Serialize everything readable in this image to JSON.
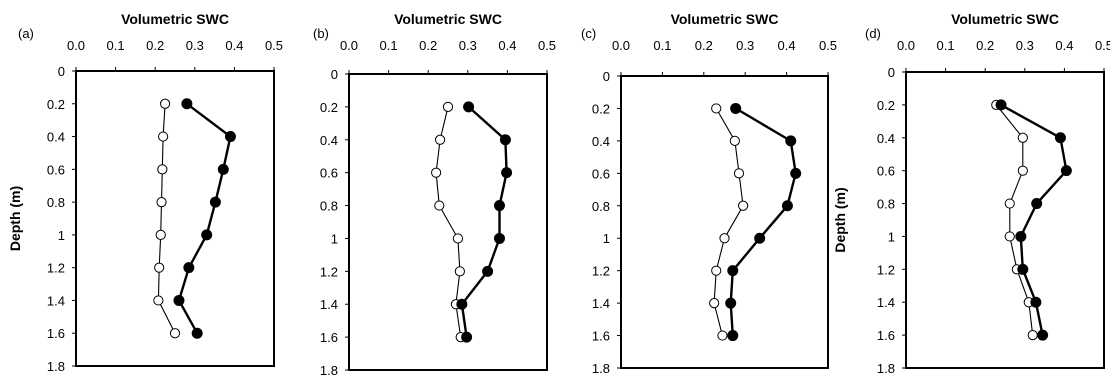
{
  "chart_data": [
    {
      "type": "line",
      "panel_label": "(a)",
      "xlabel": "Volumetric SWC",
      "ylabel": "Depth (m)",
      "xlim": [
        0,
        0.5
      ],
      "ylim": [
        0,
        1.8
      ],
      "x_ticks": [
        "0.0",
        "0.1",
        "0.2",
        "0.3",
        "0.4",
        "0.5"
      ],
      "y_ticks": [
        "0",
        "0.2",
        "0.4",
        "0.6",
        "0.8",
        "1",
        "1.2",
        "1.4",
        "1.6",
        "1.8"
      ],
      "series": [
        {
          "marker": "open-circle",
          "points": [
            [
              0.225,
              0.2
            ],
            [
              0.22,
              0.4
            ],
            [
              0.218,
              0.6
            ],
            [
              0.216,
              0.8
            ],
            [
              0.214,
              1.0
            ],
            [
              0.21,
              1.2
            ],
            [
              0.208,
              1.4
            ],
            [
              0.25,
              1.6
            ]
          ]
        },
        {
          "marker": "filled-circle",
          "points": [
            [
              0.28,
              0.2
            ],
            [
              0.39,
              0.4
            ],
            [
              0.372,
              0.6
            ],
            [
              0.352,
              0.8
            ],
            [
              0.33,
              1.0
            ],
            [
              0.285,
              1.2
            ],
            [
              0.26,
              1.4
            ],
            [
              0.306,
              1.6
            ]
          ]
        }
      ]
    },
    {
      "type": "line",
      "panel_label": "(b)",
      "xlabel": "Volumetric SWC",
      "ylabel": "",
      "xlim": [
        0,
        0.5
      ],
      "ylim": [
        0,
        1.8
      ],
      "x_ticks": [
        "0.0",
        "0.1",
        "0.2",
        "0.3",
        "0.4",
        "0.5"
      ],
      "y_ticks": [
        "0",
        "0.2",
        "0.4",
        "0.6",
        "0.8",
        "1",
        "1.2",
        "1.4",
        "1.6",
        "1.8"
      ],
      "series": [
        {
          "marker": "open-circle",
          "points": [
            [
              0.25,
              0.2
            ],
            [
              0.23,
              0.4
            ],
            [
              0.22,
              0.6
            ],
            [
              0.228,
              0.8
            ],
            [
              0.275,
              1.0
            ],
            [
              0.28,
              1.2
            ],
            [
              0.27,
              1.4
            ],
            [
              0.282,
              1.6
            ]
          ]
        },
        {
          "marker": "filled-circle",
          "points": [
            [
              0.302,
              0.2
            ],
            [
              0.395,
              0.4
            ],
            [
              0.398,
              0.6
            ],
            [
              0.38,
              0.8
            ],
            [
              0.38,
              1.0
            ],
            [
              0.35,
              1.2
            ],
            [
              0.285,
              1.4
            ],
            [
              0.297,
              1.6
            ]
          ]
        }
      ]
    },
    {
      "type": "line",
      "panel_label": "(c)",
      "xlabel": "Volumetric SWC",
      "ylabel": "",
      "xlim": [
        0,
        0.5
      ],
      "ylim": [
        0,
        1.8
      ],
      "x_ticks": [
        "0.0",
        "0.1",
        "0.2",
        "0.3",
        "0.4",
        "0.5"
      ],
      "y_ticks": [
        "0",
        "0.2",
        "0.4",
        "0.6",
        "0.8",
        "1",
        "1.2",
        "1.4",
        "1.6",
        "1.8"
      ],
      "series": [
        {
          "marker": "open-circle",
          "points": [
            [
              0.23,
              0.2
            ],
            [
              0.275,
              0.4
            ],
            [
              0.285,
              0.6
            ],
            [
              0.295,
              0.8
            ],
            [
              0.25,
              1.0
            ],
            [
              0.23,
              1.2
            ],
            [
              0.225,
              1.4
            ],
            [
              0.245,
              1.6
            ]
          ]
        },
        {
          "marker": "filled-circle",
          "points": [
            [
              0.277,
              0.2
            ],
            [
              0.41,
              0.4
            ],
            [
              0.422,
              0.6
            ],
            [
              0.402,
              0.8
            ],
            [
              0.335,
              1.0
            ],
            [
              0.27,
              1.2
            ],
            [
              0.265,
              1.4
            ],
            [
              0.27,
              1.6
            ]
          ]
        }
      ]
    },
    {
      "type": "line",
      "panel_label": "(d)",
      "xlabel": "Volumetric SWC",
      "ylabel": "Depth (m)",
      "xlim": [
        0,
        0.5
      ],
      "ylim": [
        0,
        1.8
      ],
      "x_ticks": [
        "0.0",
        "0.1",
        "0.2",
        "0.3",
        "0.4",
        "0.5"
      ],
      "y_ticks": [
        "0",
        "0.2",
        "0.4",
        "0.6",
        "0.8",
        "1",
        "1.2",
        "1.4",
        "1.6",
        "1.8"
      ],
      "series": [
        {
          "marker": "open-circle",
          "points": [
            [
              0.228,
              0.2
            ],
            [
              0.295,
              0.4
            ],
            [
              0.295,
              0.6
            ],
            [
              0.262,
              0.8
            ],
            [
              0.262,
              1.0
            ],
            [
              0.28,
              1.2
            ],
            [
              0.31,
              1.4
            ],
            [
              0.32,
              1.6
            ]
          ]
        },
        {
          "marker": "filled-circle",
          "points": [
            [
              0.24,
              0.2
            ],
            [
              0.39,
              0.4
            ],
            [
              0.405,
              0.6
            ],
            [
              0.33,
              0.8
            ],
            [
              0.29,
              1.0
            ],
            [
              0.295,
              1.2
            ],
            [
              0.328,
              1.4
            ],
            [
              0.345,
              1.6
            ]
          ]
        }
      ]
    }
  ]
}
